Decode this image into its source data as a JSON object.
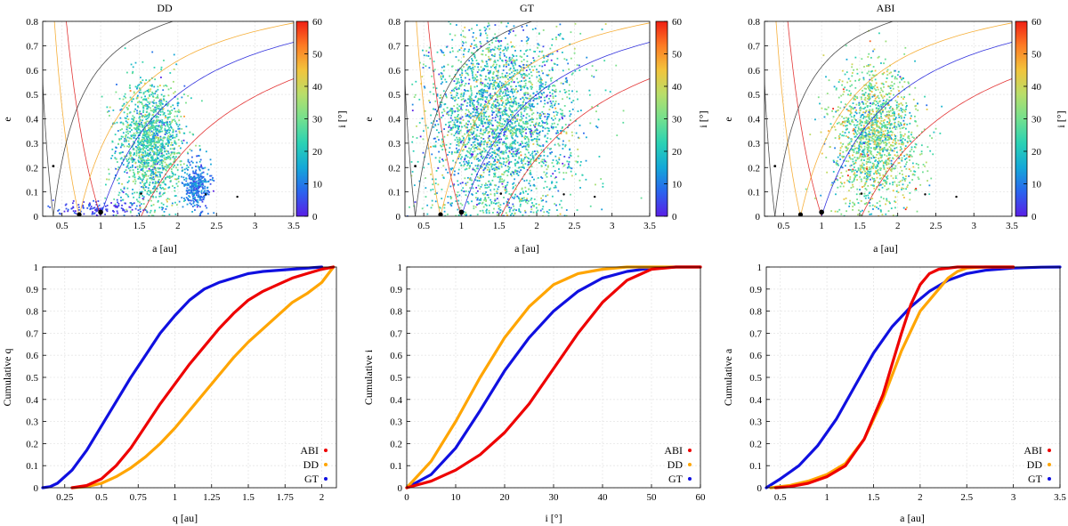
{
  "colors": {
    "inclination_colormap": [
      "#5a1fe6",
      "#2a64ee",
      "#14a8d8",
      "#2ad2b4",
      "#73e08e",
      "#b8de6a",
      "#f2c43c",
      "#fd7c24",
      "#f02014"
    ],
    "orbit_curves": [
      "#3a3a3a",
      "#f5a623",
      "#e02020",
      "#1c1cd9",
      "#9a8ae0",
      "#c8c8c8"
    ],
    "series": {
      "ABI": "#ee0000",
      "DD": "#ffa500",
      "GT": "#1010e0"
    }
  },
  "chart_data": [
    {
      "type": "scatter",
      "title": "DD",
      "xlabel": "a [au]",
      "ylabel": "e",
      "xlim": [
        0.25,
        3.5
      ],
      "ylim": [
        0,
        0.8
      ],
      "xticks": [
        "0.5",
        "1",
        "1.5",
        "2",
        "2.5",
        "3",
        "3.5"
      ],
      "yticks": [
        "0",
        "0.1",
        "0.2",
        "0.3",
        "0.4",
        "0.5",
        "0.6",
        "0.7",
        "0.8"
      ],
      "colorbar": {
        "label": "i [°]",
        "range": [
          0,
          60
        ],
        "ticks": [
          "0",
          "10",
          "20",
          "30",
          "40",
          "50",
          "60"
        ]
      },
      "clusters": [
        {
          "a_mean": 1.65,
          "a_sd": 0.22,
          "e_mean": 0.3,
          "e_sd": 0.13,
          "n": 1500,
          "i_mean": 24,
          "i_sd": 8
        },
        {
          "a_mean": 2.25,
          "a_sd": 0.09,
          "e_mean": 0.12,
          "e_sd": 0.05,
          "n": 350,
          "i_mean": 10,
          "i_sd": 4
        },
        {
          "a_mean": 1.0,
          "a_sd": 0.3,
          "e_mean": 0.03,
          "e_sd": 0.015,
          "n": 130,
          "i_mean": 4,
          "i_sd": 3
        }
      ]
    },
    {
      "type": "scatter",
      "title": "GT",
      "xlabel": "a [au]",
      "ylabel": "e",
      "xlim": [
        0.25,
        3.5
      ],
      "ylim": [
        0,
        0.8
      ],
      "xticks": [
        "0.5",
        "1",
        "1.5",
        "2",
        "2.5",
        "3",
        "3.5"
      ],
      "yticks": [
        "0",
        "0.1",
        "0.2",
        "0.3",
        "0.4",
        "0.5",
        "0.6",
        "0.7",
        "0.8"
      ],
      "colorbar": {
        "label": "i [°]",
        "range": [
          0,
          60
        ],
        "ticks": [
          "0",
          "10",
          "20",
          "30",
          "40",
          "50",
          "60"
        ]
      },
      "clusters": [
        {
          "a_mean": 1.5,
          "a_sd": 0.5,
          "e_mean": 0.4,
          "e_sd": 0.2,
          "n": 3000,
          "i_mean": 22,
          "i_sd": 10
        }
      ]
    },
    {
      "type": "scatter",
      "title": "ABI",
      "xlabel": "a [au]",
      "ylabel": "e",
      "xlim": [
        0.25,
        3.5
      ],
      "ylim": [
        0,
        0.8
      ],
      "xticks": [
        "0.5",
        "1",
        "1.5",
        "2",
        "2.5",
        "3",
        "3.5"
      ],
      "yticks": [
        "0",
        "0.1",
        "0.2",
        "0.3",
        "0.4",
        "0.5",
        "0.6",
        "0.7",
        "0.8"
      ],
      "colorbar": {
        "label": "i [°]",
        "range": [
          0,
          60
        ],
        "ticks": [
          "0",
          "10",
          "20",
          "30",
          "40",
          "50",
          "60"
        ]
      },
      "clusters": [
        {
          "a_mean": 1.7,
          "a_sd": 0.28,
          "e_mean": 0.33,
          "e_sd": 0.14,
          "n": 1600,
          "i_mean": 30,
          "i_sd": 10
        }
      ]
    },
    {
      "type": "line",
      "title": "",
      "xlabel": "q [au]",
      "ylabel": "Cumulative q",
      "xlim": [
        0.1,
        2.1
      ],
      "ylim": [
        0,
        1
      ],
      "xticks": [
        "0.25",
        "0.5",
        "0.75",
        "1",
        "1.25",
        "1.5",
        "1.75",
        "2"
      ],
      "yticks": [
        "0",
        "0.1",
        "0.2",
        "0.3",
        "0.4",
        "0.5",
        "0.6",
        "0.7",
        "0.8",
        "0.9",
        "1"
      ],
      "legend": [
        "ABI",
        "DD",
        "GT"
      ],
      "series": [
        {
          "name": "ABI",
          "x": [
            0.3,
            0.4,
            0.5,
            0.6,
            0.7,
            0.8,
            0.9,
            1.0,
            1.1,
            1.2,
            1.3,
            1.4,
            1.5,
            1.6,
            1.7,
            1.8,
            1.9,
            2.0,
            2.08
          ],
          "y": [
            0,
            0.01,
            0.04,
            0.1,
            0.18,
            0.28,
            0.38,
            0.47,
            0.56,
            0.64,
            0.72,
            0.79,
            0.85,
            0.89,
            0.92,
            0.95,
            0.97,
            0.99,
            1.0
          ]
        },
        {
          "name": "DD",
          "x": [
            0.3,
            0.4,
            0.5,
            0.6,
            0.7,
            0.8,
            0.9,
            1.0,
            1.1,
            1.2,
            1.3,
            1.4,
            1.5,
            1.6,
            1.7,
            1.8,
            1.9,
            2.0,
            2.08
          ],
          "y": [
            0,
            0.005,
            0.02,
            0.05,
            0.09,
            0.14,
            0.2,
            0.27,
            0.35,
            0.43,
            0.51,
            0.59,
            0.66,
            0.72,
            0.78,
            0.84,
            0.88,
            0.93,
            1.0
          ]
        },
        {
          "name": "GT",
          "x": [
            0.1,
            0.15,
            0.2,
            0.3,
            0.4,
            0.5,
            0.6,
            0.7,
            0.8,
            0.9,
            1.0,
            1.1,
            1.2,
            1.3,
            1.4,
            1.5,
            1.6,
            1.8,
            2.0
          ],
          "y": [
            0,
            0.005,
            0.02,
            0.08,
            0.17,
            0.28,
            0.39,
            0.5,
            0.6,
            0.7,
            0.78,
            0.85,
            0.9,
            0.93,
            0.95,
            0.97,
            0.98,
            0.99,
            1.0
          ]
        }
      ]
    },
    {
      "type": "line",
      "title": "",
      "xlabel": "i [°]",
      "ylabel": "Cumulative i",
      "xlim": [
        0,
        60
      ],
      "ylim": [
        0,
        1
      ],
      "xticks": [
        "0",
        "10",
        "20",
        "30",
        "40",
        "50",
        "60"
      ],
      "yticks": [
        "0",
        "0.1",
        "0.2",
        "0.3",
        "0.4",
        "0.5",
        "0.6",
        "0.7",
        "0.8",
        "0.9",
        "1"
      ],
      "legend": [
        "ABI",
        "DD",
        "GT"
      ],
      "series": [
        {
          "name": "ABI",
          "x": [
            0,
            5,
            10,
            15,
            20,
            25,
            30,
            35,
            40,
            45,
            50,
            55,
            60
          ],
          "y": [
            0,
            0.03,
            0.08,
            0.15,
            0.25,
            0.38,
            0.54,
            0.7,
            0.84,
            0.94,
            0.99,
            1.0,
            1.0
          ]
        },
        {
          "name": "DD",
          "x": [
            0,
            5,
            10,
            15,
            20,
            25,
            30,
            35,
            40,
            45,
            50,
            55,
            60
          ],
          "y": [
            0,
            0.12,
            0.3,
            0.5,
            0.68,
            0.82,
            0.92,
            0.97,
            0.99,
            1.0,
            1.0,
            1.0,
            1.0
          ]
        },
        {
          "name": "GT",
          "x": [
            0,
            5,
            10,
            15,
            20,
            25,
            30,
            35,
            40,
            45,
            50,
            55,
            60
          ],
          "y": [
            0,
            0.06,
            0.18,
            0.35,
            0.53,
            0.68,
            0.8,
            0.89,
            0.95,
            0.98,
            0.995,
            1.0,
            1.0
          ]
        }
      ]
    },
    {
      "type": "line",
      "title": "",
      "xlabel": "a [au]",
      "ylabel": "Cumulative a",
      "xlim": [
        0.35,
        3.5
      ],
      "ylim": [
        0,
        1
      ],
      "xticks": [
        "0.5",
        "1",
        "1.5",
        "2",
        "2.5",
        "3",
        "3.5"
      ],
      "yticks": [
        "0",
        "0.1",
        "0.2",
        "0.3",
        "0.4",
        "0.5",
        "0.6",
        "0.7",
        "0.8",
        "0.9",
        "1"
      ],
      "legend": [
        "ABI",
        "DD",
        "GT"
      ],
      "series": [
        {
          "name": "ABI",
          "x": [
            0.45,
            0.6,
            0.8,
            1.0,
            1.2,
            1.4,
            1.6,
            1.7,
            1.8,
            1.9,
            2.0,
            2.1,
            2.2,
            2.4,
            2.6,
            3.0
          ],
          "y": [
            0,
            0.005,
            0.02,
            0.05,
            0.1,
            0.22,
            0.42,
            0.56,
            0.7,
            0.83,
            0.92,
            0.97,
            0.99,
            1.0,
            1.0,
            1.0
          ]
        },
        {
          "name": "DD",
          "x": [
            0.4,
            0.6,
            0.8,
            1.0,
            1.2,
            1.4,
            1.6,
            1.8,
            2.0,
            2.2,
            2.3,
            2.4,
            2.5,
            2.7,
            3.0
          ],
          "y": [
            0,
            0.01,
            0.03,
            0.06,
            0.11,
            0.22,
            0.4,
            0.62,
            0.8,
            0.9,
            0.95,
            0.98,
            0.995,
            1.0,
            1.0
          ]
        },
        {
          "name": "GT",
          "x": [
            0.35,
            0.5,
            0.7,
            0.9,
            1.1,
            1.3,
            1.5,
            1.7,
            1.9,
            2.1,
            2.3,
            2.5,
            2.7,
            3.0,
            3.3,
            3.5
          ],
          "y": [
            0,
            0.04,
            0.1,
            0.19,
            0.31,
            0.46,
            0.61,
            0.73,
            0.82,
            0.89,
            0.94,
            0.97,
            0.985,
            0.995,
            0.999,
            1.0
          ]
        }
      ]
    }
  ]
}
